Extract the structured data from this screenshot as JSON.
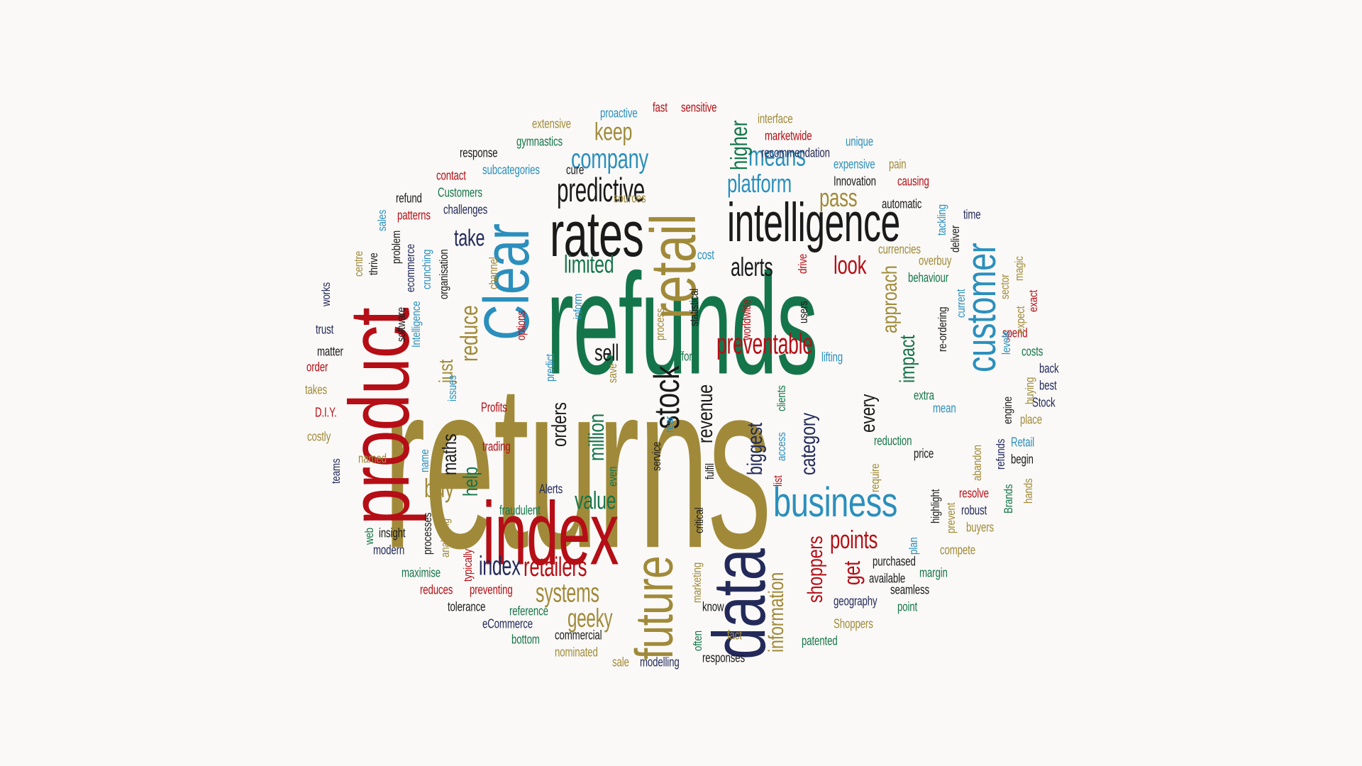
{
  "palette": {
    "gold": "#a08a3a",
    "green": "#15754a",
    "red": "#b50e16",
    "navy": "#232a5a",
    "blue": "#2b8fbd",
    "black": "#1a1a1a",
    "background": "#faf9f7"
  },
  "words": [
    {
      "text": "returns",
      "color": "gold"
    },
    {
      "text": "refunds",
      "color": "green"
    },
    {
      "text": "product",
      "color": "red"
    },
    {
      "text": "data",
      "color": "navy"
    },
    {
      "text": "index",
      "color": "red"
    },
    {
      "text": "Clear",
      "color": "blue"
    },
    {
      "text": "retail",
      "color": "gold"
    },
    {
      "text": "rates",
      "color": "black"
    },
    {
      "text": "future",
      "color": "gold"
    },
    {
      "text": "intelligence",
      "color": "black"
    },
    {
      "text": "customer",
      "color": "blue"
    },
    {
      "text": "business",
      "color": "blue"
    },
    {
      "text": "stock",
      "color": "black"
    },
    {
      "text": "predictive",
      "color": "black"
    },
    {
      "text": "company",
      "color": "blue"
    },
    {
      "text": "preventable",
      "color": "red"
    },
    {
      "text": "reduce",
      "color": "gold"
    },
    {
      "text": "keep",
      "color": "gold"
    },
    {
      "text": "means",
      "color": "blue"
    },
    {
      "text": "platform",
      "color": "blue"
    },
    {
      "text": "higher",
      "color": "green"
    },
    {
      "text": "pass",
      "color": "gold"
    },
    {
      "text": "alerts",
      "color": "black"
    },
    {
      "text": "limited",
      "color": "green"
    },
    {
      "text": "look",
      "color": "red"
    },
    {
      "text": "take",
      "color": "navy"
    },
    {
      "text": "approach",
      "color": "gold"
    },
    {
      "text": "impact",
      "color": "green"
    },
    {
      "text": "sell",
      "color": "black"
    },
    {
      "text": "just",
      "color": "gold"
    },
    {
      "text": "maths",
      "color": "black"
    },
    {
      "text": "orders",
      "color": "black"
    },
    {
      "text": "million",
      "color": "green"
    },
    {
      "text": "revenue",
      "color": "black"
    },
    {
      "text": "biggest",
      "color": "navy"
    },
    {
      "text": "category",
      "color": "navy"
    },
    {
      "text": "every",
      "color": "black"
    },
    {
      "text": "buy",
      "color": "gold"
    },
    {
      "text": "help",
      "color": "green"
    },
    {
      "text": "value",
      "color": "green"
    },
    {
      "text": "points",
      "color": "red"
    },
    {
      "text": "get",
      "color": "red"
    },
    {
      "text": "shoppers",
      "color": "red"
    },
    {
      "text": "information",
      "color": "gold"
    },
    {
      "text": "index",
      "color": "navy"
    },
    {
      "text": "retailers",
      "color": "red"
    },
    {
      "text": "systems",
      "color": "gold"
    },
    {
      "text": "geeky",
      "color": "gold"
    },
    {
      "text": "extensive",
      "color": "gold"
    },
    {
      "text": "proactive",
      "color": "blue"
    },
    {
      "text": "fast",
      "color": "red"
    },
    {
      "text": "sensitive",
      "color": "red"
    },
    {
      "text": "interface",
      "color": "gold"
    },
    {
      "text": "gymnastics",
      "color": "green"
    },
    {
      "text": "marketwide",
      "color": "red"
    },
    {
      "text": "unique",
      "color": "blue"
    },
    {
      "text": "response",
      "color": "black"
    },
    {
      "text": "recommendation",
      "color": "navy"
    },
    {
      "text": "subcategories",
      "color": "blue"
    },
    {
      "text": "cure",
      "color": "black"
    },
    {
      "text": "expensive",
      "color": "blue"
    },
    {
      "text": "pain",
      "color": "gold"
    },
    {
      "text": "contact",
      "color": "red"
    },
    {
      "text": "Innovation",
      "color": "black"
    },
    {
      "text": "causing",
      "color": "red"
    },
    {
      "text": "refund",
      "color": "black"
    },
    {
      "text": "Customers",
      "color": "green"
    },
    {
      "text": "sources",
      "color": "gold"
    },
    {
      "text": "challenges",
      "color": "navy"
    },
    {
      "text": "automatic",
      "color": "black"
    },
    {
      "text": "patterns",
      "color": "red"
    },
    {
      "text": "time",
      "color": "navy"
    },
    {
      "text": "currencies",
      "color": "gold"
    },
    {
      "text": "overbuy",
      "color": "gold"
    },
    {
      "text": "behaviour",
      "color": "green"
    },
    {
      "text": "cost",
      "color": "blue"
    },
    {
      "text": "trust",
      "color": "navy"
    },
    {
      "text": "matter",
      "color": "black"
    },
    {
      "text": "order",
      "color": "red"
    },
    {
      "text": "takes",
      "color": "gold"
    },
    {
      "text": "D.I.Y.",
      "color": "red"
    },
    {
      "text": "costly",
      "color": "gold"
    },
    {
      "text": "named",
      "color": "gold"
    },
    {
      "text": "Profits",
      "color": "red"
    },
    {
      "text": "trading",
      "color": "red"
    },
    {
      "text": "efforts",
      "color": "green"
    },
    {
      "text": "lifting",
      "color": "blue"
    },
    {
      "text": "spend",
      "color": "red"
    },
    {
      "text": "costs",
      "color": "green"
    },
    {
      "text": "back",
      "color": "navy"
    },
    {
      "text": "best",
      "color": "navy"
    },
    {
      "text": "Stock",
      "color": "navy"
    },
    {
      "text": "place",
      "color": "gold"
    },
    {
      "text": "extra",
      "color": "green"
    },
    {
      "text": "mean",
      "color": "blue"
    },
    {
      "text": "reduction",
      "color": "green"
    },
    {
      "text": "price",
      "color": "black"
    },
    {
      "text": "Retail",
      "color": "blue"
    },
    {
      "text": "begin",
      "color": "black"
    },
    {
      "text": "resolve",
      "color": "red"
    },
    {
      "text": "robust",
      "color": "navy"
    },
    {
      "text": "buyers",
      "color": "gold"
    },
    {
      "text": "compete",
      "color": "gold"
    },
    {
      "text": "Alerts",
      "color": "navy"
    },
    {
      "text": "fraudulent",
      "color": "green"
    },
    {
      "text": "insight",
      "color": "black"
    },
    {
      "text": "modern",
      "color": "navy"
    },
    {
      "text": "maximise",
      "color": "green"
    },
    {
      "text": "reduces",
      "color": "red"
    },
    {
      "text": "preventing",
      "color": "red"
    },
    {
      "text": "tolerance",
      "color": "black"
    },
    {
      "text": "reference",
      "color": "green"
    },
    {
      "text": "eCommerce",
      "color": "navy"
    },
    {
      "text": "bottom",
      "color": "green"
    },
    {
      "text": "commercial",
      "color": "black"
    },
    {
      "text": "nominated",
      "color": "gold"
    },
    {
      "text": "sale",
      "color": "gold"
    },
    {
      "text": "modelling",
      "color": "navy"
    },
    {
      "text": "responses",
      "color": "black"
    },
    {
      "text": "fact",
      "color": "gold"
    },
    {
      "text": "know",
      "color": "black"
    },
    {
      "text": "purchased",
      "color": "black"
    },
    {
      "text": "available",
      "color": "black"
    },
    {
      "text": "margin",
      "color": "green"
    },
    {
      "text": "seamless",
      "color": "black"
    },
    {
      "text": "geography",
      "color": "navy"
    },
    {
      "text": "point",
      "color": "green"
    },
    {
      "text": "Shoppers",
      "color": "gold"
    },
    {
      "text": "patented",
      "color": "green"
    },
    {
      "text": "centre",
      "color": "gold"
    },
    {
      "text": "works",
      "color": "navy"
    },
    {
      "text": "teams",
      "color": "navy"
    },
    {
      "text": "web",
      "color": "green"
    },
    {
      "text": "thrive",
      "color": "black"
    },
    {
      "text": "sales",
      "color": "blue"
    },
    {
      "text": "problem",
      "color": "black"
    },
    {
      "text": "ecommerce",
      "color": "navy"
    },
    {
      "text": "crunching",
      "color": "blue"
    },
    {
      "text": "organisation",
      "color": "black"
    },
    {
      "text": "software",
      "color": "black"
    },
    {
      "text": "Intelligence",
      "color": "blue"
    },
    {
      "text": "channel",
      "color": "gold"
    },
    {
      "text": "options",
      "color": "red"
    },
    {
      "text": "inform",
      "color": "blue"
    },
    {
      "text": "process",
      "color": "gold"
    },
    {
      "text": "statistical",
      "color": "black"
    },
    {
      "text": "worldwide",
      "color": "red"
    },
    {
      "text": "users",
      "color": "black"
    },
    {
      "text": "drive",
      "color": "red"
    },
    {
      "text": "issues",
      "color": "blue"
    },
    {
      "text": "predict",
      "color": "blue"
    },
    {
      "text": "save",
      "color": "gold"
    },
    {
      "text": "clients",
      "color": "green"
    },
    {
      "text": "access",
      "color": "blue"
    },
    {
      "text": "service",
      "color": "black"
    },
    {
      "text": "rear",
      "color": "blue"
    },
    {
      "text": "fulfil",
      "color": "black"
    },
    {
      "text": "list",
      "color": "red"
    },
    {
      "text": "even",
      "color": "green"
    },
    {
      "text": "name",
      "color": "blue"
    },
    {
      "text": "processes",
      "color": "black"
    },
    {
      "text": "analysing",
      "color": "gold"
    },
    {
      "text": "typically",
      "color": "red"
    },
    {
      "text": "critical",
      "color": "black"
    },
    {
      "text": "marketing",
      "color": "gold"
    },
    {
      "text": "often",
      "color": "green"
    },
    {
      "text": "require",
      "color": "gold"
    },
    {
      "text": "highlight",
      "color": "black"
    },
    {
      "text": "plan",
      "color": "blue"
    },
    {
      "text": "prevent",
      "color": "gold"
    },
    {
      "text": "abandon",
      "color": "gold"
    },
    {
      "text": "refunds",
      "color": "navy"
    },
    {
      "text": "Brands",
      "color": "green"
    },
    {
      "text": "engine",
      "color": "black"
    },
    {
      "text": "hands",
      "color": "gold"
    },
    {
      "text": "buying",
      "color": "gold"
    },
    {
      "text": "levels",
      "color": "blue"
    },
    {
      "text": "expect",
      "color": "gold"
    },
    {
      "text": "exact",
      "color": "red"
    },
    {
      "text": "sector",
      "color": "gold"
    },
    {
      "text": "magic",
      "color": "gold"
    },
    {
      "text": "current",
      "color": "blue"
    },
    {
      "text": "re-ordering",
      "color": "black"
    },
    {
      "text": "deliver",
      "color": "black"
    },
    {
      "text": "tackling",
      "color": "blue"
    }
  ]
}
